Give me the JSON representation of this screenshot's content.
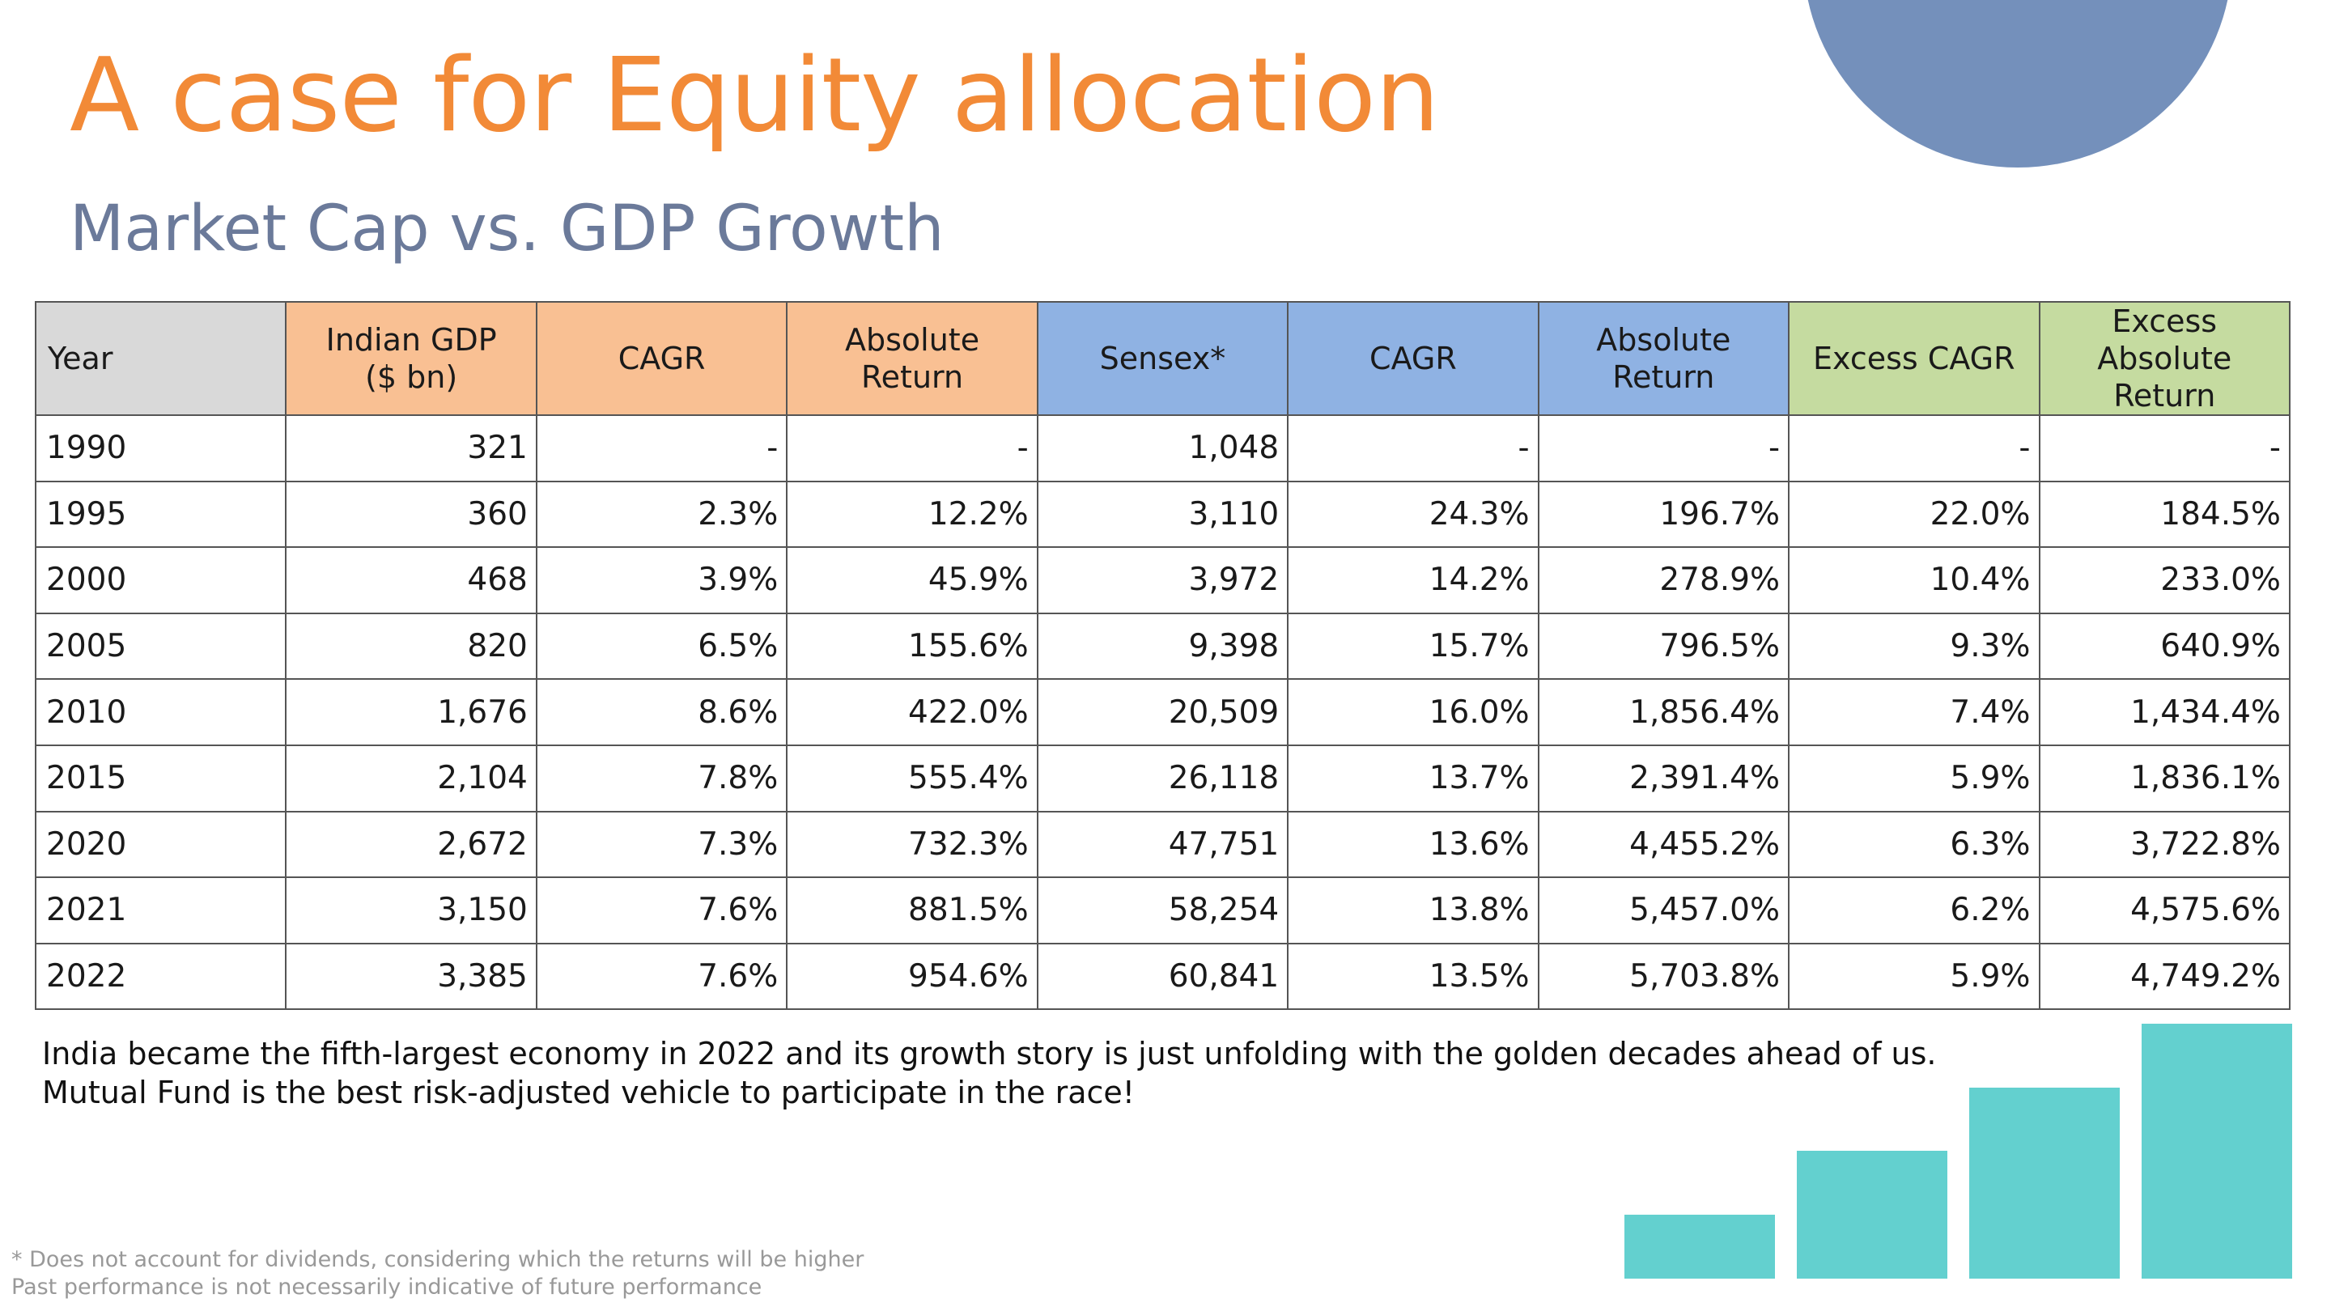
{
  "title": "A case for Equity allocation",
  "subtitle": "Market Cap vs. GDP Growth",
  "table": {
    "headers": {
      "year": "Year",
      "gdp_line1": "Indian GDP",
      "gdp_line2": "($ bn)",
      "gdp_cagr": "CAGR",
      "gdp_abs": "Absolute Return",
      "sensex": "Sensex*",
      "sensex_cagr": "CAGR",
      "sensex_abs": "Absolute Return",
      "excess_cagr": "Excess CAGR",
      "excess_abs_line1": "Excess Absolute",
      "excess_abs_line2": "Return"
    },
    "rows": [
      {
        "year": "1990",
        "gdp": "321",
        "gdp_cagr": "-",
        "gdp_abs": "-",
        "sensex": "1,048",
        "sensex_cagr": "-",
        "sensex_abs": "-",
        "excess_cagr": "-",
        "excess_abs": "-"
      },
      {
        "year": "1995",
        "gdp": "360",
        "gdp_cagr": "2.3%",
        "gdp_abs": "12.2%",
        "sensex": "3,110",
        "sensex_cagr": "24.3%",
        "sensex_abs": "196.7%",
        "excess_cagr": "22.0%",
        "excess_abs": "184.5%"
      },
      {
        "year": "2000",
        "gdp": "468",
        "gdp_cagr": "3.9%",
        "gdp_abs": "45.9%",
        "sensex": "3,972",
        "sensex_cagr": "14.2%",
        "sensex_abs": "278.9%",
        "excess_cagr": "10.4%",
        "excess_abs": "233.0%"
      },
      {
        "year": "2005",
        "gdp": "820",
        "gdp_cagr": "6.5%",
        "gdp_abs": "155.6%",
        "sensex": "9,398",
        "sensex_cagr": "15.7%",
        "sensex_abs": "796.5%",
        "excess_cagr": "9.3%",
        "excess_abs": "640.9%"
      },
      {
        "year": "2010",
        "gdp": "1,676",
        "gdp_cagr": "8.6%",
        "gdp_abs": "422.0%",
        "sensex": "20,509",
        "sensex_cagr": "16.0%",
        "sensex_abs": "1,856.4%",
        "excess_cagr": "7.4%",
        "excess_abs": "1,434.4%"
      },
      {
        "year": "2015",
        "gdp": "2,104",
        "gdp_cagr": "7.8%",
        "gdp_abs": "555.4%",
        "sensex": "26,118",
        "sensex_cagr": "13.7%",
        "sensex_abs": "2,391.4%",
        "excess_cagr": "5.9%",
        "excess_abs": "1,836.1%"
      },
      {
        "year": "2020",
        "gdp": "2,672",
        "gdp_cagr": "7.3%",
        "gdp_abs": "732.3%",
        "sensex": "47,751",
        "sensex_cagr": "13.6%",
        "sensex_abs": "4,455.2%",
        "excess_cagr": "6.3%",
        "excess_abs": "3,722.8%"
      },
      {
        "year": "2021",
        "gdp": "3,150",
        "gdp_cagr": "7.6%",
        "gdp_abs": "881.5%",
        "sensex": "58,254",
        "sensex_cagr": "13.8%",
        "sensex_abs": "5,457.0%",
        "excess_cagr": "6.2%",
        "excess_abs": "4,575.6%"
      },
      {
        "year": "2022",
        "gdp": "3,385",
        "gdp_cagr": "7.6%",
        "gdp_abs": "954.6%",
        "sensex": "60,841",
        "sensex_cagr": "13.5%",
        "sensex_abs": "5,703.8%",
        "excess_cagr": "5.9%",
        "excess_abs": "4,749.2%"
      }
    ]
  },
  "note": {
    "line1": "India became the fifth-largest economy in 2022 and its growth story is just unfolding with the golden decades ahead of us.",
    "line2": "Mutual Fund is the best risk-adjusted vehicle to participate in the race!"
  },
  "footnote": {
    "line1": "* Does not account for dividends, considering which the returns will be higher",
    "line2": "Past performance is not necessarily indicative of future performance"
  },
  "decor_bars": {
    "relative_heights": [
      0.25,
      0.5,
      0.75,
      1.0
    ],
    "color": "#63d0cf"
  },
  "colors": {
    "title": "#f28a37",
    "subtitle": "#6b7a9a",
    "header_year": "#d9d9d9",
    "header_gdp": "#f9c093",
    "header_sensex": "#8fb2e3",
    "header_excess": "#c5dba0",
    "corner_circle": "#7490bb"
  }
}
